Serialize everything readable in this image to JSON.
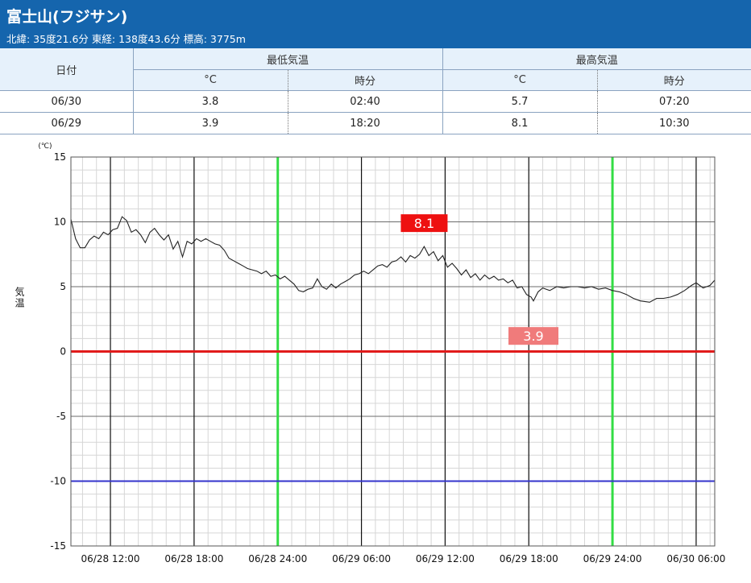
{
  "station": {
    "title": "富士山(フジサン)",
    "info": "北緯: 35度21.6分 東経: 138度43.6分 標高: 3775m"
  },
  "table": {
    "date_header": "日付",
    "min_header": "最低気温",
    "max_header": "最高気温",
    "unit_c": "°C",
    "time_header": "時分",
    "rows": [
      {
        "date": "06/30",
        "min_temp": "3.8",
        "min_time": "02:40",
        "max_temp": "5.7",
        "max_time": "07:20"
      },
      {
        "date": "06/29",
        "min_temp": "3.9",
        "min_time": "18:20",
        "max_temp": "8.1",
        "max_time": "10:30"
      }
    ]
  },
  "colors": {
    "header_bg": "#1565ad",
    "zero_line": "#e11b1b",
    "minus10_line": "#3333cc",
    "day_line": "#33dd44",
    "max_label_bg": "#ee1111",
    "min_label_bg": "#f07b7b",
    "temp_line": "#222222"
  },
  "chart_data": {
    "type": "line",
    "ylabel": "気温",
    "yunit": "(℃)",
    "ylim": [
      -15,
      15
    ],
    "yticks": [
      "15",
      "10",
      "5",
      "0",
      "-5",
      "-10",
      "-15"
    ],
    "xlim": [
      "06/28 09:10",
      "06/30 07:20"
    ],
    "xticks": [
      "06/28 12:00",
      "06/28 18:00",
      "06/28 24:00",
      "06/29 06:00",
      "06/29 12:00",
      "06/29 18:00",
      "06/29 24:00",
      "06/30 06:00"
    ],
    "grid": true,
    "series": [
      {
        "values": [
          [
            "06/28 09:10",
            10.2
          ],
          [
            "06/28 09:30",
            8.7
          ],
          [
            "06/28 09:50",
            8.0
          ],
          [
            "06/28 10:10",
            8.0
          ],
          [
            "06/28 10:30",
            8.6
          ],
          [
            "06/28 10:50",
            8.9
          ],
          [
            "06/28 11:10",
            8.7
          ],
          [
            "06/28 11:30",
            9.2
          ],
          [
            "06/28 11:50",
            9.0
          ],
          [
            "06/28 12:10",
            9.4
          ],
          [
            "06/28 12:30",
            9.5
          ],
          [
            "06/28 12:50",
            10.4
          ],
          [
            "06/28 13:10",
            10.1
          ],
          [
            "06/28 13:30",
            9.2
          ],
          [
            "06/28 13:50",
            9.4
          ],
          [
            "06/28 14:10",
            9.0
          ],
          [
            "06/28 14:30",
            8.4
          ],
          [
            "06/28 14:50",
            9.2
          ],
          [
            "06/28 15:10",
            9.5
          ],
          [
            "06/28 15:30",
            9.0
          ],
          [
            "06/28 15:50",
            8.6
          ],
          [
            "06/28 16:10",
            9.0
          ],
          [
            "06/28 16:30",
            7.9
          ],
          [
            "06/28 16:50",
            8.5
          ],
          [
            "06/28 17:10",
            7.3
          ],
          [
            "06/28 17:30",
            8.5
          ],
          [
            "06/28 17:50",
            8.3
          ],
          [
            "06/28 18:10",
            8.7
          ],
          [
            "06/28 18:30",
            8.5
          ],
          [
            "06/28 18:50",
            8.7
          ],
          [
            "06/28 19:10",
            8.5
          ],
          [
            "06/28 19:30",
            8.3
          ],
          [
            "06/28 19:50",
            8.2
          ],
          [
            "06/28 20:10",
            7.8
          ],
          [
            "06/28 20:30",
            7.2
          ],
          [
            "06/28 20:50",
            7.0
          ],
          [
            "06/28 21:10",
            6.8
          ],
          [
            "06/28 21:30",
            6.6
          ],
          [
            "06/28 21:50",
            6.4
          ],
          [
            "06/28 22:10",
            6.3
          ],
          [
            "06/28 22:30",
            6.2
          ],
          [
            "06/28 22:50",
            6.0
          ],
          [
            "06/28 23:10",
            6.2
          ],
          [
            "06/28 23:30",
            5.8
          ],
          [
            "06/28 23:50",
            5.9
          ],
          [
            "06/29 00:10",
            5.6
          ],
          [
            "06/29 00:30",
            5.8
          ],
          [
            "06/29 00:50",
            5.5
          ],
          [
            "06/29 01:10",
            5.2
          ],
          [
            "06/29 01:30",
            4.7
          ],
          [
            "06/29 01:50",
            4.6
          ],
          [
            "06/29 02:10",
            4.8
          ],
          [
            "06/29 02:30",
            4.9
          ],
          [
            "06/29 02:50",
            5.6
          ],
          [
            "06/29 03:10",
            5.0
          ],
          [
            "06/29 03:30",
            4.8
          ],
          [
            "06/29 03:50",
            5.2
          ],
          [
            "06/29 04:10",
            4.9
          ],
          [
            "06/29 04:30",
            5.2
          ],
          [
            "06/29 04:50",
            5.4
          ],
          [
            "06/29 05:10",
            5.6
          ],
          [
            "06/29 05:30",
            5.9
          ],
          [
            "06/29 05:50",
            6.0
          ],
          [
            "06/29 06:10",
            6.2
          ],
          [
            "06/29 06:30",
            6.0
          ],
          [
            "06/29 06:50",
            6.3
          ],
          [
            "06/29 07:10",
            6.6
          ],
          [
            "06/29 07:30",
            6.7
          ],
          [
            "06/29 07:50",
            6.5
          ],
          [
            "06/29 08:10",
            6.9
          ],
          [
            "06/29 08:30",
            7.0
          ],
          [
            "06/29 08:50",
            7.3
          ],
          [
            "06/29 09:10",
            6.9
          ],
          [
            "06/29 09:30",
            7.4
          ],
          [
            "06/29 09:50",
            7.2
          ],
          [
            "06/29 10:10",
            7.5
          ],
          [
            "06/29 10:30",
            8.1
          ],
          [
            "06/29 10:50",
            7.4
          ],
          [
            "06/29 11:10",
            7.7
          ],
          [
            "06/29 11:30",
            7.0
          ],
          [
            "06/29 11:50",
            7.4
          ],
          [
            "06/29 12:10",
            6.5
          ],
          [
            "06/29 12:30",
            6.8
          ],
          [
            "06/29 12:50",
            6.4
          ],
          [
            "06/29 13:10",
            5.9
          ],
          [
            "06/29 13:30",
            6.3
          ],
          [
            "06/29 13:50",
            5.7
          ],
          [
            "06/29 14:10",
            6.0
          ],
          [
            "06/29 14:30",
            5.5
          ],
          [
            "06/29 14:50",
            5.9
          ],
          [
            "06/29 15:10",
            5.6
          ],
          [
            "06/29 15:30",
            5.8
          ],
          [
            "06/29 15:50",
            5.5
          ],
          [
            "06/29 16:10",
            5.6
          ],
          [
            "06/29 16:30",
            5.3
          ],
          [
            "06/29 16:50",
            5.5
          ],
          [
            "06/29 17:10",
            4.9
          ],
          [
            "06/29 17:30",
            5.0
          ],
          [
            "06/29 17:50",
            4.4
          ],
          [
            "06/29 18:10",
            4.2
          ],
          [
            "06/29 18:20",
            3.9
          ],
          [
            "06/29 18:40",
            4.6
          ],
          [
            "06/29 19:00",
            4.9
          ],
          [
            "06/29 19:30",
            4.7
          ],
          [
            "06/29 20:00",
            5.0
          ],
          [
            "06/29 20:30",
            4.9
          ],
          [
            "06/29 21:00",
            5.0
          ],
          [
            "06/29 21:30",
            5.0
          ],
          [
            "06/29 22:00",
            4.9
          ],
          [
            "06/29 22:30",
            5.0
          ],
          [
            "06/29 23:00",
            4.8
          ],
          [
            "06/29 23:30",
            4.9
          ],
          [
            "06/30 00:00",
            4.7
          ],
          [
            "06/30 00:30",
            4.6
          ],
          [
            "06/30 01:00",
            4.4
          ],
          [
            "06/30 01:30",
            4.1
          ],
          [
            "06/30 02:00",
            3.9
          ],
          [
            "06/30 02:40",
            3.8
          ],
          [
            "06/30 03:10",
            4.1
          ],
          [
            "06/30 03:40",
            4.1
          ],
          [
            "06/30 04:10",
            4.2
          ],
          [
            "06/30 04:40",
            4.4
          ],
          [
            "06/30 05:10",
            4.7
          ],
          [
            "06/30 05:40",
            5.1
          ],
          [
            "06/30 06:00",
            5.3
          ],
          [
            "06/30 06:30",
            4.9
          ],
          [
            "06/30 07:00",
            5.1
          ],
          [
            "06/30 07:20",
            5.5
          ]
        ]
      }
    ],
    "annotations": [
      {
        "text": "8.1",
        "x": "06/29 10:30",
        "y": 9.9,
        "kind": "max"
      },
      {
        "text": "3.9",
        "x": "06/29 18:20",
        "y": 1.2,
        "kind": "min"
      }
    ]
  }
}
